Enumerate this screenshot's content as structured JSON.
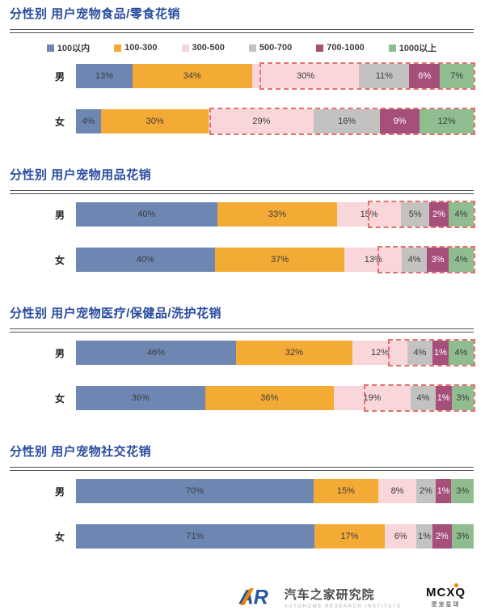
{
  "page": {
    "title_color": "#2a4c9e",
    "dashed_highlight_color": "#e4706a",
    "unit": "%"
  },
  "legend": {
    "position": "top-center",
    "items": [
      {
        "label": "100以内",
        "color": "#6d87b2"
      },
      {
        "label": "100-300",
        "color": "#f4ab35"
      },
      {
        "label": "300-500",
        "color": "#f8d6da"
      },
      {
        "label": "500-700",
        "color": "#c3c2c1"
      },
      {
        "label": "700-1000",
        "color": "#a74f7b"
      },
      {
        "label": "1000以上",
        "color": "#8fbd90"
      }
    ]
  },
  "chart_data": [
    {
      "type": "bar",
      "orientation": "horizontal",
      "stacked": true,
      "title": "分性别 用户宠物食品/零食花销",
      "show_legend": true,
      "xlim": [
        0,
        100
      ],
      "categories": [
        "男",
        "女"
      ],
      "series": [
        {
          "name": "100以内",
          "values": [
            13,
            4
          ]
        },
        {
          "name": "100-300",
          "values": [
            34,
            30
          ]
        },
        {
          "name": "300-500",
          "values": [
            30,
            29
          ]
        },
        {
          "name": "500-700",
          "values": [
            11,
            16
          ]
        },
        {
          "name": "700-1000",
          "values": [
            6,
            9
          ]
        },
        {
          "name": "1000以上",
          "values": [
            7,
            12
          ]
        }
      ],
      "dashed_from_series_index": 2
    },
    {
      "type": "bar",
      "orientation": "horizontal",
      "stacked": true,
      "title": "分性别 用户宠物用品花销",
      "show_legend": false,
      "xlim": [
        0,
        100
      ],
      "categories": [
        "男",
        "女"
      ],
      "series": [
        {
          "name": "100以内",
          "values": [
            40,
            40
          ]
        },
        {
          "name": "100-300",
          "values": [
            33,
            37
          ]
        },
        {
          "name": "300-500",
          "values": [
            15,
            13
          ]
        },
        {
          "name": "500-700",
          "values": [
            5,
            4
          ]
        },
        {
          "name": "700-1000",
          "values": [
            2,
            3
          ]
        },
        {
          "name": "1000以上",
          "values": [
            4,
            4
          ]
        }
      ],
      "dashed_from_series_index": 2
    },
    {
      "type": "bar",
      "orientation": "horizontal",
      "stacked": true,
      "title": "分性别 用户宠物医疗/保健品/洗护花销",
      "show_legend": false,
      "xlim": [
        0,
        100
      ],
      "categories": [
        "男",
        "女"
      ],
      "series": [
        {
          "name": "100以内",
          "values": [
            46,
            36
          ]
        },
        {
          "name": "100-300",
          "values": [
            32,
            36
          ]
        },
        {
          "name": "300-500",
          "values": [
            12,
            19
          ]
        },
        {
          "name": "500-700",
          "values": [
            4,
            4
          ]
        },
        {
          "name": "700-1000",
          "values": [
            1,
            1
          ]
        },
        {
          "name": "1000以上",
          "values": [
            4,
            3
          ]
        }
      ],
      "dashed_from_series_index": 2
    },
    {
      "type": "bar",
      "orientation": "horizontal",
      "stacked": true,
      "title": "分性别 用户宠物社交花销",
      "show_legend": false,
      "xlim": [
        0,
        100
      ],
      "categories": [
        "男",
        "女"
      ],
      "series": [
        {
          "name": "100以内",
          "values": [
            70,
            71
          ]
        },
        {
          "name": "100-300",
          "values": [
            15,
            17
          ]
        },
        {
          "name": "300-500",
          "values": [
            8,
            6
          ]
        },
        {
          "name": "500-700",
          "values": [
            2,
            1
          ]
        },
        {
          "name": "700-1000",
          "values": [
            1,
            2
          ]
        },
        {
          "name": "1000以上",
          "values": [
            3,
            3
          ]
        }
      ],
      "dashed_from_series_index": null
    }
  ],
  "footer": {
    "autohome_logo": "AR",
    "autohome_name": "汽车之家研究院",
    "autohome_caption": "AUTOHOME RESEARCH INSTITUTE",
    "partner_logo": "MCXQ",
    "partner_caption": "盟宠星球"
  }
}
